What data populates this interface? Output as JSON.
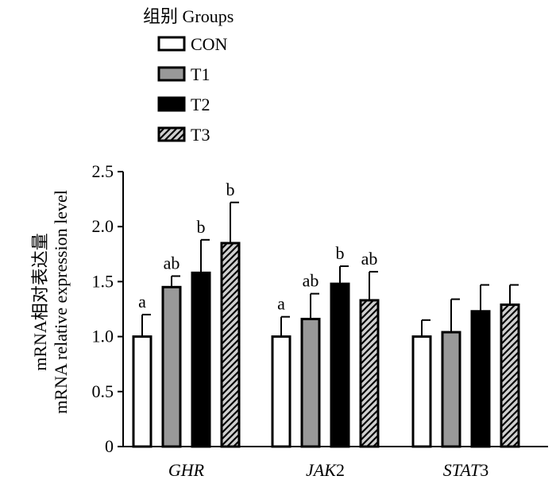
{
  "chart_data": {
    "type": "bar",
    "legend": {
      "title": "组别 Groups",
      "placement": "top-left"
    },
    "series": [
      {
        "name": "CON",
        "fill": "#ffffff",
        "pattern": "none",
        "values": [
          1.0,
          1.0,
          1.0
        ],
        "errors": [
          0.2,
          0.18,
          0.15
        ],
        "labels": [
          "a",
          "a",
          ""
        ]
      },
      {
        "name": "T1",
        "fill": "#999999",
        "pattern": "none",
        "values": [
          1.45,
          1.16,
          1.04
        ],
        "errors": [
          0.1,
          0.23,
          0.3
        ],
        "labels": [
          "ab",
          "ab",
          ""
        ]
      },
      {
        "name": "T2",
        "fill": "#000000",
        "pattern": "none",
        "values": [
          1.58,
          1.48,
          1.23
        ],
        "errors": [
          0.3,
          0.16,
          0.24
        ],
        "labels": [
          "b",
          "b",
          ""
        ]
      },
      {
        "name": "T3",
        "fill": "#cccccc",
        "pattern": "diagonal-stripes",
        "values": [
          1.85,
          1.33,
          1.29
        ],
        "errors": [
          0.37,
          0.26,
          0.18
        ],
        "labels": [
          "b",
          "ab",
          ""
        ]
      }
    ],
    "categories": [
      "GHR",
      "JAK2",
      "STAT3"
    ],
    "category_label_parts": [
      [
        {
          "text": "GHR",
          "italic": true
        }
      ],
      [
        {
          "text": "JAK",
          "italic": true
        },
        {
          "text": "2",
          "italic": false
        }
      ],
      [
        {
          "text": "STAT",
          "italic": true
        },
        {
          "text": "3",
          "italic": false
        }
      ]
    ],
    "ylabel_lines": [
      "mRNA相对表达量",
      "mRNA relative expression level"
    ],
    "ylim": [
      0,
      2.5
    ],
    "yticks": [
      0,
      0.5,
      1.0,
      1.5,
      2.0,
      2.5
    ],
    "ytick_labels": [
      "0",
      "0.5",
      "1.0",
      "1.5",
      "2.0",
      "2.5"
    ],
    "grid": false
  }
}
